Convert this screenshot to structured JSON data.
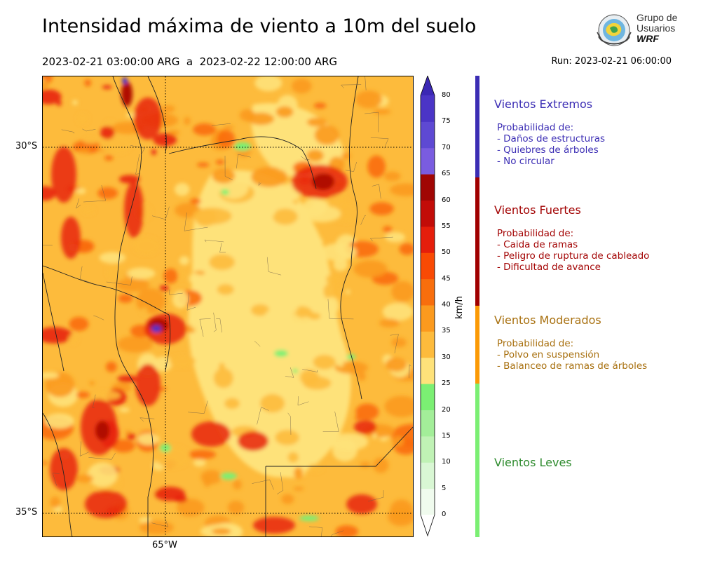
{
  "title": "Intensidad máxima de viento a 10m del suelo",
  "period": "2023-02-21 03:00:00 ARG  a  2023-02-22 12:00:00 ARG",
  "run": "Run: 2023-02-21 06:00:00",
  "logo": {
    "line1": "Grupo de",
    "line2": "Usuarios",
    "line3": "WRF"
  },
  "map": {
    "lat_labels": [
      "30°S",
      "35°S"
    ],
    "lon_labels": [
      "65°W"
    ],
    "colors": {
      "pale_yellow": "#fee27a",
      "light_orange": "#fdbb3c",
      "orange": "#fb9a1e",
      "dark_orange": "#f96d0b",
      "red": "#e8230a",
      "dark_red": "#b00a06",
      "green": "#7bef73",
      "purple": "#4b35c6"
    }
  },
  "colorbar": {
    "unit": "km/h",
    "ticks": [
      "0",
      "5",
      "10",
      "15",
      "20",
      "25",
      "30",
      "35",
      "40",
      "45",
      "50",
      "55",
      "60",
      "65",
      "70",
      "75",
      "80"
    ],
    "colors": [
      "#f0fbee",
      "#d9f7d4",
      "#c0f2b5",
      "#a3ee99",
      "#7bef73",
      "#fee27a",
      "#fdbb3c",
      "#fb9a1e",
      "#f86e0d",
      "#f94a04",
      "#e51e0b",
      "#c20c08",
      "#a00604",
      "#7a5ce0",
      "#5e49d3",
      "#4b35c6"
    ]
  },
  "categories": [
    {
      "title": "Vientos Extremos",
      "color": "#3b2db4",
      "bar_color": "#3b2db4",
      "desc": [
        "Probabilidad de:",
        "- Daños de estructuras",
        "- Quiebres de árboles",
        "- No circular"
      ]
    },
    {
      "title": "Vientos Fuertes",
      "color": "#a30404",
      "bar_color": "#a00000",
      "desc": [
        "Probabilidad de:",
        "- Caida de ramas",
        "- Peligro de ruptura de cableado",
        "- Dificultad de avance"
      ]
    },
    {
      "title": "Vientos Moderados",
      "color": "#a8700f",
      "bar_color": "#fb9a06",
      "desc": [
        "Probabilidad de:",
        "- Polvo en suspensión",
        "- Balanceo de ramas de árboles"
      ]
    },
    {
      "title": "Vientos Leves",
      "color": "#2e8b2e",
      "bar_color": "#7bef73",
      "desc": []
    }
  ]
}
